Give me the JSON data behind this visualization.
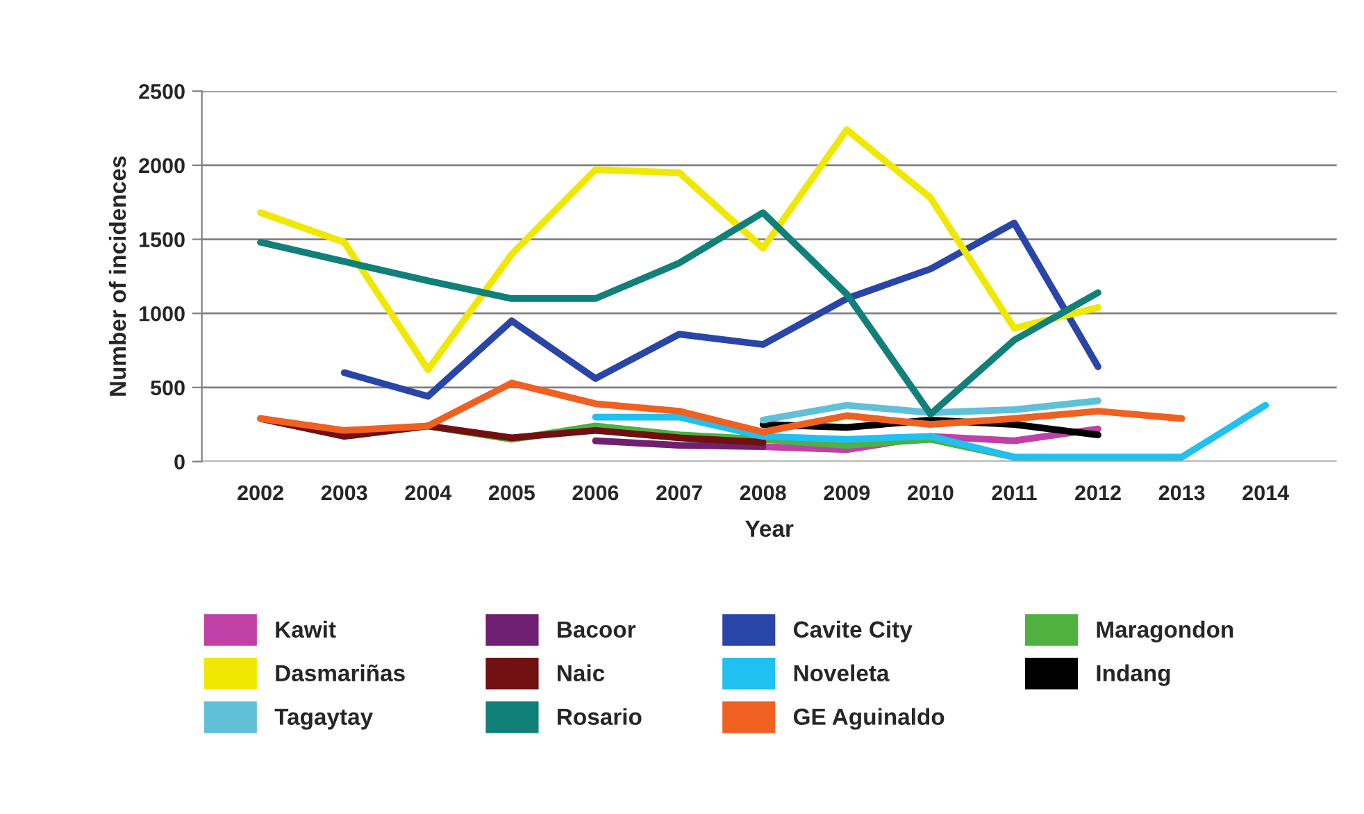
{
  "chart_data": {
    "type": "line",
    "xlabel": "Year",
    "ylabel": "Number of incidences",
    "categories": [
      "2002",
      "2003",
      "2004",
      "2005",
      "2006",
      "2007",
      "2008",
      "2009",
      "2010",
      "2011",
      "2012",
      "2013",
      "2014"
    ],
    "ylim": [
      0,
      2500
    ],
    "yticks": [
      0,
      500,
      1000,
      1500,
      2000,
      2500
    ],
    "grid": "y",
    "legend": "bottom",
    "marker": "none",
    "line_style": "solid",
    "series": [
      {
        "name": "Kawit",
        "color": "#c040a8",
        "values": [
          null,
          null,
          null,
          null,
          null,
          null,
          100,
          80,
          170,
          140,
          220,
          null,
          null
        ]
      },
      {
        "name": "Bacoor",
        "color": "#702070",
        "values": [
          null,
          null,
          null,
          null,
          140,
          110,
          100,
          null,
          null,
          null,
          null,
          null,
          null
        ]
      },
      {
        "name": "Cavite City",
        "color": "#2a45a8",
        "values": [
          null,
          600,
          440,
          950,
          560,
          860,
          790,
          1100,
          1300,
          1610,
          640,
          null,
          null
        ]
      },
      {
        "name": "Maragondon",
        "color": "#50b040",
        "values": [
          null,
          null,
          240,
          150,
          240,
          180,
          150,
          110,
          150,
          30,
          null,
          null,
          null
        ]
      },
      {
        "name": "Dasmariñas",
        "color": "#f0e800",
        "values": [
          1680,
          1480,
          620,
          1400,
          1970,
          1950,
          1440,
          2240,
          1780,
          900,
          1040,
          null,
          null
        ]
      },
      {
        "name": "Naic",
        "color": "#701010",
        "values": [
          290,
          170,
          240,
          160,
          210,
          160,
          130,
          null,
          null,
          null,
          null,
          null,
          null
        ]
      },
      {
        "name": "Noveleta",
        "color": "#20c0f0",
        "values": [
          null,
          null,
          null,
          null,
          300,
          300,
          170,
          150,
          170,
          30,
          30,
          30,
          380
        ]
      },
      {
        "name": "Indang",
        "color": "#000000",
        "values": [
          null,
          null,
          null,
          null,
          null,
          null,
          250,
          230,
          280,
          250,
          180,
          null,
          null
        ]
      },
      {
        "name": "Tagaytay",
        "color": "#60c0d8",
        "values": [
          null,
          null,
          null,
          null,
          null,
          null,
          280,
          380,
          330,
          350,
          410,
          null,
          null
        ]
      },
      {
        "name": "Rosario",
        "color": "#108078",
        "values": [
          1480,
          1350,
          1220,
          1100,
          1100,
          1340,
          1680,
          1130,
          320,
          820,
          1140,
          null,
          null
        ]
      },
      {
        "name": "GE Aguinaldo",
        "color": "#f06020",
        "values": [
          290,
          210,
          240,
          530,
          390,
          340,
          200,
          310,
          250,
          290,
          340,
          290,
          null
        ]
      }
    ]
  }
}
